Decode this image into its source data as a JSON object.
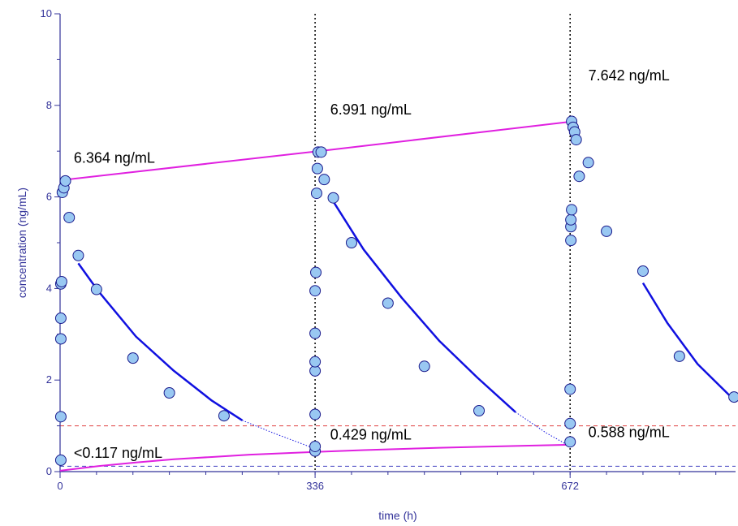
{
  "chart_data": {
    "type": "scatter",
    "xlabel": "time (h)",
    "ylabel": "concentration (ng/mL)",
    "xlim": [
      0,
      890
    ],
    "ylim": [
      0,
      10
    ],
    "x_ticks": [
      "0",
      "336",
      "672"
    ],
    "y_ticks": [
      "0",
      "2",
      "4",
      "6",
      "8",
      "10"
    ],
    "dose_times": [
      336,
      672
    ],
    "reference_lines": [
      {
        "y": 1.0,
        "color": "#e04040",
        "style": "dashed"
      },
      {
        "y": 0.117,
        "color": "#4040c0",
        "style": "dashed"
      }
    ],
    "annotations": [
      {
        "text": "6.364 ng/mL",
        "x": 18,
        "y": 6.75
      },
      {
        "text": "6.991 ng/mL",
        "x": 356,
        "y": 7.8
      },
      {
        "text": "7.642 ng/mL",
        "x": 696,
        "y": 8.55
      },
      {
        "text": "<0.117 ng/mL",
        "x": 18,
        "y": 0.3
      },
      {
        "text": "0.429 ng/mL",
        "x": 356,
        "y": 0.7
      },
      {
        "text": "0.588 ng/mL",
        "x": 696,
        "y": 0.75
      }
    ],
    "series": [
      {
        "color": "#e020e0",
        "points": [
          [
            0,
            6.364
          ],
          [
            336,
            6.991
          ],
          [
            672,
            7.642
          ]
        ],
        "style": "line"
      },
      {
        "color": "#e020e0",
        "points": [
          [
            0,
            0.02
          ],
          [
            50,
            0.12
          ],
          [
            100,
            0.2
          ],
          [
            150,
            0.27
          ],
          [
            200,
            0.32
          ],
          [
            250,
            0.37
          ],
          [
            336,
            0.429
          ],
          [
            400,
            0.47
          ],
          [
            500,
            0.52
          ],
          [
            600,
            0.56
          ],
          [
            672,
            0.588
          ]
        ],
        "style": "line"
      },
      {
        "color": "#1010e0",
        "points": [
          [
            24,
            4.55
          ],
          [
            50,
            3.95
          ],
          [
            100,
            2.95
          ],
          [
            150,
            2.2
          ],
          [
            200,
            1.55
          ],
          [
            240,
            1.12
          ]
        ],
        "style": "line"
      },
      {
        "color": "#1010e0",
        "points": [
          [
            240,
            1.12
          ],
          [
            280,
            0.85
          ],
          [
            336,
            0.5
          ]
        ],
        "style": "dotted"
      },
      {
        "color": "#1010e0",
        "points": [
          [
            360,
            5.9
          ],
          [
            400,
            4.85
          ],
          [
            450,
            3.8
          ],
          [
            500,
            2.85
          ],
          [
            550,
            2.05
          ],
          [
            600,
            1.3
          ]
        ],
        "style": "line"
      },
      {
        "color": "#1010e0",
        "points": [
          [
            600,
            1.3
          ],
          [
            640,
            0.85
          ],
          [
            672,
            0.55
          ]
        ],
        "style": "dotted"
      },
      {
        "color": "#1010e0",
        "points": [
          [
            768,
            4.12
          ],
          [
            800,
            3.25
          ],
          [
            840,
            2.35
          ],
          [
            889,
            1.55
          ]
        ],
        "style": "line"
      },
      {
        "name": "",
        "color": "#99c8f2",
        "style": "markers",
        "points": [
          [
            1,
            0.25
          ],
          [
            1,
            1.2
          ],
          [
            1,
            2.9
          ],
          [
            1,
            3.35
          ],
          [
            1,
            4.1
          ],
          [
            2,
            4.15
          ],
          [
            3,
            6.1
          ],
          [
            5,
            6.2
          ],
          [
            7,
            6.35
          ],
          [
            12,
            5.55
          ],
          [
            24,
            4.72
          ],
          [
            48,
            3.98
          ],
          [
            96,
            2.48
          ],
          [
            144,
            1.72
          ],
          [
            216,
            1.22
          ],
          [
            336,
            0.45
          ],
          [
            336,
            0.55
          ],
          [
            336,
            1.25
          ],
          [
            336,
            2.2
          ],
          [
            336,
            2.4
          ],
          [
            336,
            3.02
          ],
          [
            336,
            3.95
          ],
          [
            337,
            4.35
          ],
          [
            338,
            6.08
          ],
          [
            339,
            6.62
          ],
          [
            340,
            6.98
          ],
          [
            344,
            6.98
          ],
          [
            348,
            6.38
          ],
          [
            360,
            5.98
          ],
          [
            384,
            5.0
          ],
          [
            432,
            3.68
          ],
          [
            480,
            2.3
          ],
          [
            552,
            1.33
          ],
          [
            672,
            0.65
          ],
          [
            672,
            1.05
          ],
          [
            672,
            1.8
          ],
          [
            673,
            5.05
          ],
          [
            673,
            5.35
          ],
          [
            673,
            5.5
          ],
          [
            674,
            5.72
          ],
          [
            674,
            7.65
          ],
          [
            676,
            7.52
          ],
          [
            678,
            7.42
          ],
          [
            680,
            7.25
          ],
          [
            684,
            6.45
          ],
          [
            696,
            6.75
          ],
          [
            720,
            5.25
          ],
          [
            768,
            4.38
          ],
          [
            816,
            2.52
          ],
          [
            888,
            1.63
          ]
        ]
      }
    ]
  }
}
